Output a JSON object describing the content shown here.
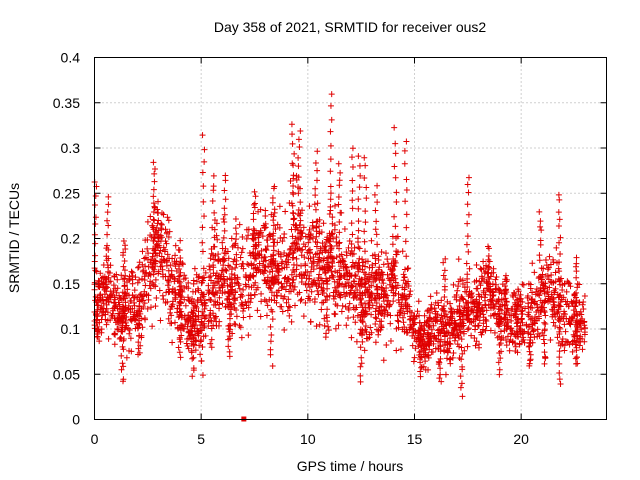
{
  "chart_data": {
    "type": "scatter",
    "title": "Day 358 of 2021, SRMTID for receiver ous2",
    "xlabel": "GPS time / hours",
    "ylabel": "SRMTID / TECUs",
    "xlim": [
      0,
      24
    ],
    "ylim": [
      0,
      0.4
    ],
    "x_ticks": [
      0,
      5,
      10,
      15,
      20
    ],
    "x_tick_labels": [
      "0",
      "5",
      "10",
      "15",
      "20"
    ],
    "y_ticks": [
      0,
      0.05,
      0.1,
      0.15,
      0.2,
      0.25,
      0.3,
      0.35,
      0.4
    ],
    "y_tick_labels": [
      "0",
      "0.05",
      "0.1",
      "0.15",
      "0.2",
      "0.25",
      "0.3",
      "0.35",
      "0.4"
    ],
    "grid": true,
    "marker": "plus",
    "color": "#e00000",
    "outlier": {
      "x": 7.0,
      "y": 0.0
    },
    "envelope": {
      "x": [
        0,
        0.5,
        1,
        1.5,
        2,
        2.5,
        3,
        3.5,
        4,
        4.5,
        5,
        5.5,
        6,
        6.5,
        7,
        7.5,
        8,
        8.5,
        9,
        9.5,
        10,
        10.5,
        11,
        11.5,
        12,
        12.5,
        13,
        13.5,
        14,
        14.5,
        15,
        15.5,
        16,
        16.5,
        17,
        17.5,
        18,
        18.5,
        19,
        19.5,
        20,
        20.5,
        21,
        21.5,
        22,
        22.5,
        23
      ],
      "median": [
        0.13,
        0.14,
        0.12,
        0.12,
        0.13,
        0.16,
        0.19,
        0.16,
        0.13,
        0.11,
        0.12,
        0.14,
        0.16,
        0.14,
        0.15,
        0.17,
        0.18,
        0.17,
        0.17,
        0.19,
        0.18,
        0.17,
        0.18,
        0.16,
        0.15,
        0.14,
        0.14,
        0.13,
        0.15,
        0.13,
        0.1,
        0.09,
        0.11,
        0.09,
        0.11,
        0.13,
        0.12,
        0.14,
        0.12,
        0.11,
        0.11,
        0.12,
        0.13,
        0.14,
        0.12,
        0.11,
        0.1
      ],
      "spread": [
        0.05,
        0.05,
        0.05,
        0.05,
        0.05,
        0.07,
        0.07,
        0.06,
        0.05,
        0.05,
        0.07,
        0.07,
        0.06,
        0.07,
        0.07,
        0.07,
        0.06,
        0.06,
        0.07,
        0.09,
        0.08,
        0.07,
        0.08,
        0.06,
        0.07,
        0.06,
        0.06,
        0.06,
        0.07,
        0.06,
        0.04,
        0.04,
        0.05,
        0.04,
        0.05,
        0.05,
        0.05,
        0.05,
        0.05,
        0.05,
        0.05,
        0.06,
        0.06,
        0.07,
        0.06,
        0.05,
        0.04
      ]
    },
    "peaks": [
      {
        "x": 0.05,
        "y": 0.265
      },
      {
        "x": 0.6,
        "y": 0.245
      },
      {
        "x": 1.4,
        "y": 0.2
      },
      {
        "x": 2.8,
        "y": 0.285
      },
      {
        "x": 4.0,
        "y": 0.195
      },
      {
        "x": 5.1,
        "y": 0.315
      },
      {
        "x": 5.6,
        "y": 0.27
      },
      {
        "x": 6.1,
        "y": 0.27
      },
      {
        "x": 6.6,
        "y": 0.22
      },
      {
        "x": 7.5,
        "y": 0.25
      },
      {
        "x": 8.4,
        "y": 0.26
      },
      {
        "x": 9.3,
        "y": 0.325
      },
      {
        "x": 9.6,
        "y": 0.32
      },
      {
        "x": 10.4,
        "y": 0.295
      },
      {
        "x": 11.1,
        "y": 0.358
      },
      {
        "x": 11.5,
        "y": 0.285
      },
      {
        "x": 12.1,
        "y": 0.302
      },
      {
        "x": 12.4,
        "y": 0.29
      },
      {
        "x": 12.7,
        "y": 0.29
      },
      {
        "x": 13.2,
        "y": 0.26
      },
      {
        "x": 14.1,
        "y": 0.32
      },
      {
        "x": 14.6,
        "y": 0.31
      },
      {
        "x": 16.4,
        "y": 0.18
      },
      {
        "x": 17.5,
        "y": 0.27
      },
      {
        "x": 18.5,
        "y": 0.19
      },
      {
        "x": 19.3,
        "y": 0.16
      },
      {
        "x": 20.9,
        "y": 0.23
      },
      {
        "x": 21.8,
        "y": 0.25
      },
      {
        "x": 22.6,
        "y": 0.18
      }
    ],
    "dips": [
      {
        "x": 0.1,
        "y": 0.09
      },
      {
        "x": 1.3,
        "y": 0.04
      },
      {
        "x": 2.1,
        "y": 0.07
      },
      {
        "x": 4.0,
        "y": 0.07
      },
      {
        "x": 4.6,
        "y": 0.05
      },
      {
        "x": 6.3,
        "y": 0.07
      },
      {
        "x": 8.3,
        "y": 0.06
      },
      {
        "x": 10.9,
        "y": 0.09
      },
      {
        "x": 12.5,
        "y": 0.04
      },
      {
        "x": 15.3,
        "y": 0.05
      },
      {
        "x": 16.2,
        "y": 0.04
      },
      {
        "x": 17.2,
        "y": 0.025
      },
      {
        "x": 19.0,
        "y": 0.05
      },
      {
        "x": 20.4,
        "y": 0.06
      },
      {
        "x": 21.1,
        "y": 0.06
      },
      {
        "x": 21.8,
        "y": 0.04
      },
      {
        "x": 22.6,
        "y": 0.06
      }
    ]
  }
}
